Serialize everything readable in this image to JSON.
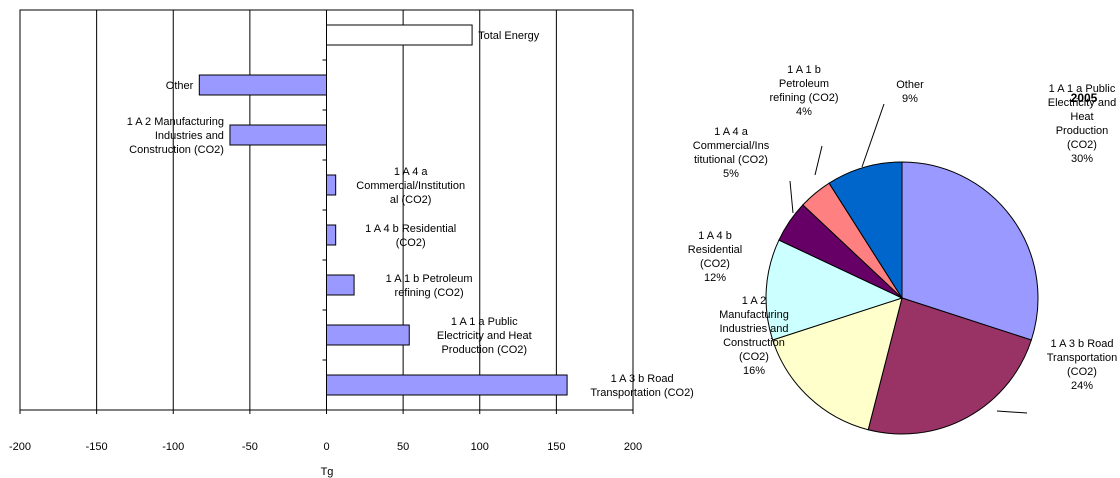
{
  "chart_data": [
    {
      "type": "bar",
      "orientation": "horizontal",
      "xlabel": "Tg",
      "xlim": [
        -200,
        200
      ],
      "xticks": [
        -200,
        -150,
        -100,
        -50,
        0,
        50,
        100,
        150,
        200
      ],
      "grid": "vertical",
      "bars": [
        {
          "label": "Total Energy",
          "value": 95,
          "fill": "#ffffff",
          "label_lines": [
            "Total Energy"
          ],
          "label_anchor": "start"
        },
        {
          "label": "Other",
          "value": -83,
          "fill": "#9999ff",
          "label_lines": [
            "Other"
          ],
          "label_anchor": "end"
        },
        {
          "label": "1 A 2 Manufacturing Industries and Construction (CO2)",
          "value": -63,
          "fill": "#9999ff",
          "label_lines": [
            "1 A 2 Manufacturing",
            "Industries and",
            "Construction (CO2)"
          ],
          "label_anchor": "end"
        },
        {
          "label": "1 A 4 a Commercial/Institutional (CO2)",
          "value": 6,
          "fill": "#9999ff",
          "label_lines": [
            "1 A 4 a",
            "Commercial/Institution",
            "al (CO2)"
          ],
          "label_anchor": "middle"
        },
        {
          "label": "1 A 4 b Residential (CO2)",
          "value": 6,
          "fill": "#9999ff",
          "label_lines": [
            "1 A 4 b Residential",
            "(CO2)"
          ],
          "label_anchor": "middle"
        },
        {
          "label": "1 A 1 b Petroleum refining (CO2)",
          "value": 18,
          "fill": "#9999ff",
          "label_lines": [
            "1 A 1 b Petroleum",
            "refining (CO2)"
          ],
          "label_anchor": "middle"
        },
        {
          "label": "1 A 1 a Public Electricity and Heat Production (CO2)",
          "value": 54,
          "fill": "#9999ff",
          "label_lines": [
            "1 A 1 a Public",
            "Electricity and Heat",
            "Production (CO2)"
          ],
          "label_anchor": "middle"
        },
        {
          "label": "1 A 3 b Road Transportation (CO2)",
          "value": 157,
          "fill": "#9999ff",
          "label_lines": [
            "1 A 3 b Road",
            "Transportation (CO2)"
          ],
          "label_anchor": "middle"
        }
      ]
    },
    {
      "type": "pie",
      "title": "2005",
      "slices": [
        {
          "label": "1 A 1 a Public Electricity and Heat Production (CO2)",
          "value": 30,
          "pct": "30%",
          "color": "#9999ff",
          "label_lines": [
            "1 A 1 a Public",
            "Electricity and",
            "Heat",
            "Production",
            "(CO2)",
            "30%"
          ]
        },
        {
          "label": "1 A 3 b Road Transportation (CO2)",
          "value": 24,
          "pct": "24%",
          "color": "#993366",
          "label_lines": [
            "1 A 3 b Road",
            "Transportation",
            "(CO2)",
            "24%"
          ]
        },
        {
          "label": "1 A 2 Manufacturing Industries and Construction (CO2)",
          "value": 16,
          "pct": "16%",
          "color": "#ffffcc",
          "label_lines": [
            "1 A 2",
            "Manufacturing",
            "Industries and",
            "Construction",
            "(CO2)",
            "16%"
          ]
        },
        {
          "label": "1 A 4 b Residential (CO2)",
          "value": 12,
          "pct": "12%",
          "color": "#ccffff",
          "label_lines": [
            "1 A 4 b",
            "Residential",
            "(CO2)",
            "12%"
          ]
        },
        {
          "label": "1 A 4 a Commercial/Institutional (CO2)",
          "value": 5,
          "pct": "5%",
          "color": "#660066",
          "label_lines": [
            "1 A 4 a",
            "Commercial/Ins",
            "titutional (CO2)",
            "5%"
          ]
        },
        {
          "label": "1 A 1 b Petroleum refining (CO2)",
          "value": 4,
          "pct": "4%",
          "color": "#ff8080",
          "label_lines": [
            "1 A 1 b",
            "Petroleum",
            "refining (CO2)",
            "4%"
          ]
        },
        {
          "label": "Other",
          "value": 9,
          "pct": "9%",
          "color": "#0066cc",
          "label_lines": [
            "Other",
            "9%"
          ]
        }
      ]
    }
  ]
}
